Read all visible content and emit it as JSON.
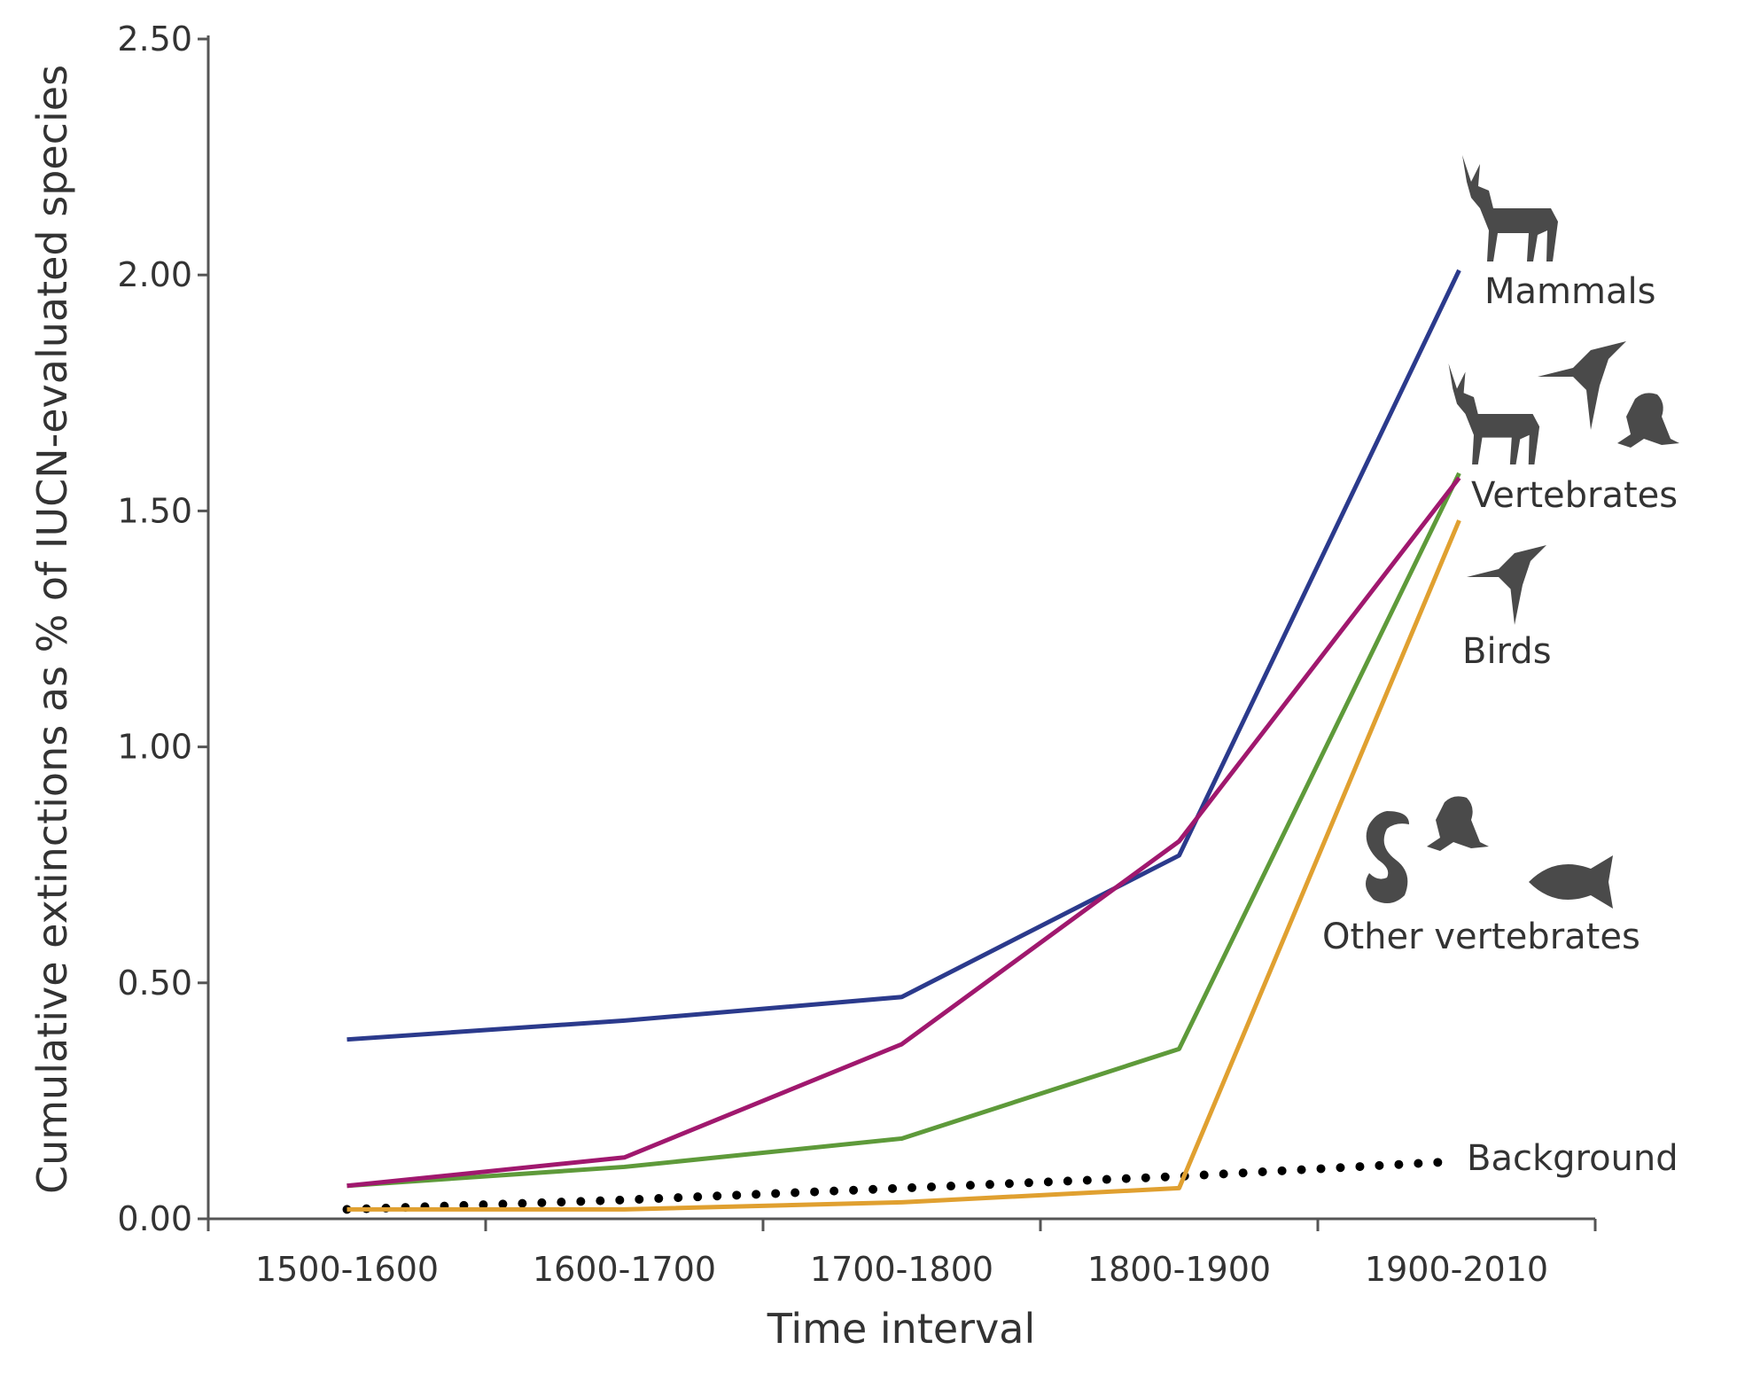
{
  "chart_data": {
    "type": "line",
    "title": "",
    "xlabel": "Time interval",
    "ylabel": "Cumulative extinctions as % of IUCN-evaluated species",
    "categories": [
      "1500-1600",
      "1600-1700",
      "1700-1800",
      "1800-1900",
      "1900-2010"
    ],
    "ylim": [
      0,
      2.5
    ],
    "yticks": [
      "0.00",
      "0.50",
      "1.00",
      "1.50",
      "2.00",
      "2.50"
    ],
    "grid": false,
    "legend": "inline labels at line ends (right)",
    "series": [
      {
        "name": "Mammals",
        "color": "#2b3a8c",
        "style": "solid",
        "values": [
          0.38,
          0.42,
          0.47,
          0.77,
          2.01
        ]
      },
      {
        "name": "Vertebrates",
        "color": "#a0186e",
        "style": "solid",
        "values": [
          0.07,
          0.13,
          0.37,
          0.8,
          1.57
        ]
      },
      {
        "name": "Birds",
        "color": "#5e9a3a",
        "style": "solid",
        "values": [
          0.07,
          0.11,
          0.17,
          0.36,
          1.58
        ]
      },
      {
        "name": "Other vertebrates",
        "color": "#e0a030",
        "style": "solid",
        "values": [
          0.02,
          0.02,
          0.035,
          0.065,
          1.48
        ]
      },
      {
        "name": "Background",
        "color": "#000000",
        "style": "dotted",
        "values": [
          0.02,
          0.04,
          0.065,
          0.09,
          0.12
        ]
      }
    ],
    "icons": [
      "deer-icon",
      "bird-icon",
      "frog-icon",
      "snake-icon",
      "fish-icon"
    ]
  }
}
